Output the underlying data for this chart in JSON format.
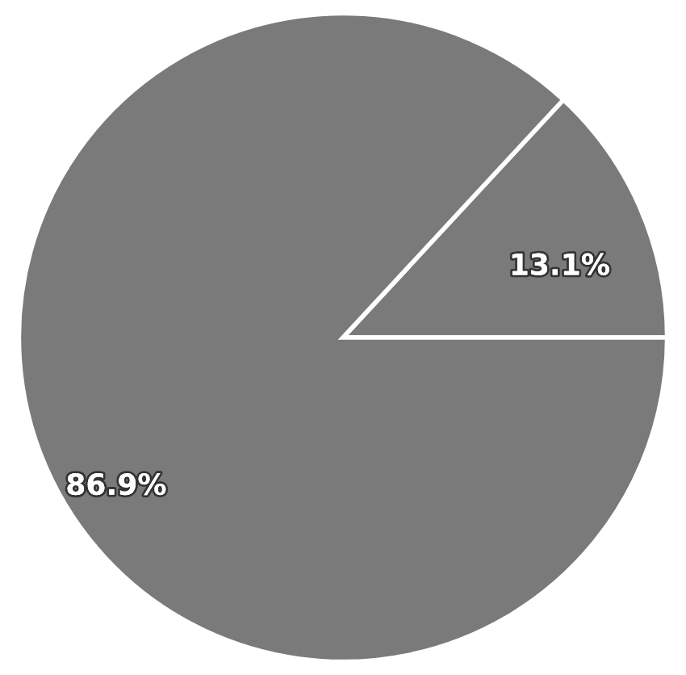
{
  "chart_data": {
    "type": "pie",
    "categories": [
      null,
      null
    ],
    "values": [
      13.1,
      86.9
    ],
    "colors": [
      "#7a7a7a",
      "#7a7a7a"
    ],
    "value_labels": [
      "13.1%",
      "86.9%"
    ]
  }
}
